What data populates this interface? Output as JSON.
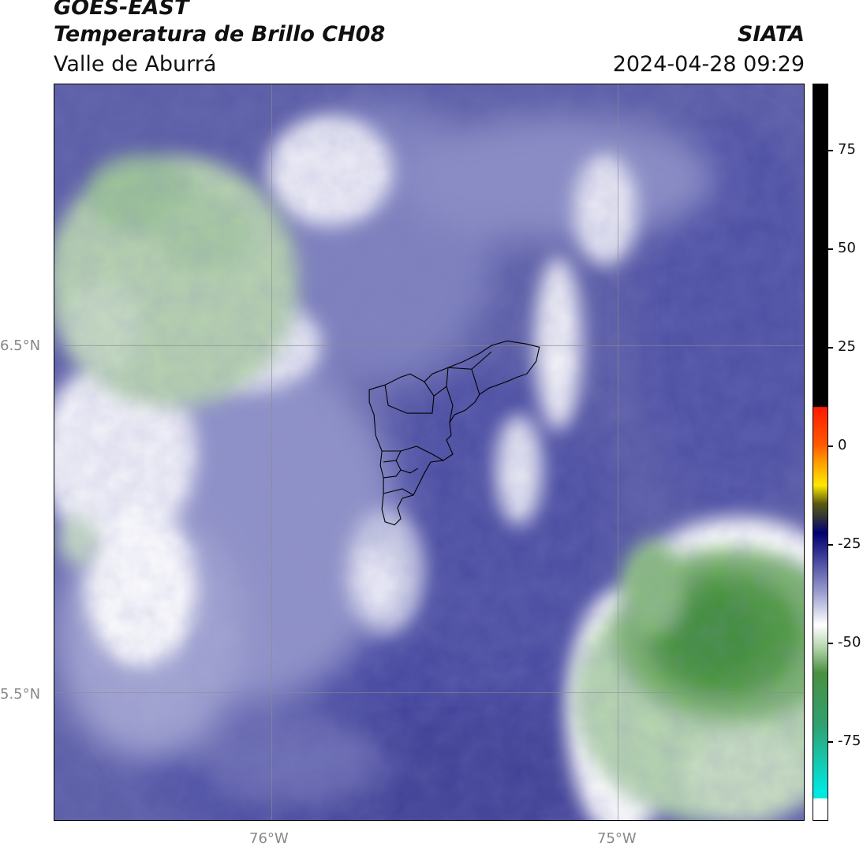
{
  "header": {
    "satellite": "GOES-EAST",
    "product": "Temperatura de Brillo CH08",
    "region": "Valle de Aburrá",
    "agency": "SIATA",
    "timestamp": "2024-04-28 09:29"
  },
  "map": {
    "lat_labels": [
      "6.5°N",
      "5.5°N"
    ],
    "lon_labels": [
      "76°W",
      "75°W"
    ]
  },
  "colorbar": {
    "ticks": [
      "75",
      "50",
      "25",
      "0",
      "-25",
      "-50",
      "-75"
    ],
    "tick_values": [
      75,
      50,
      25,
      0,
      -25,
      -50,
      -75
    ],
    "range": [
      -95,
      92
    ],
    "colors": {
      "black": "#000000",
      "red": "#ff1a00",
      "orange": "#ff8c00",
      "yellow": "#ffff00",
      "olive": "#4d4d00",
      "navy": "#000070",
      "indigo": "#3a3a96",
      "lavender": "#c0c2e0",
      "white": "#ffffff",
      "light_green": "#b8d8b0",
      "green": "#3a8a2a",
      "teal": "#20c8a8",
      "cyan": "#00e8e0"
    }
  }
}
